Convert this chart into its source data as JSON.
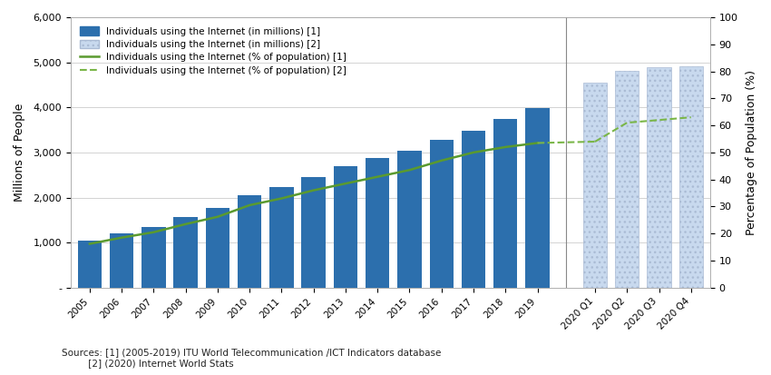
{
  "years": [
    "2005",
    "2006",
    "2007",
    "2008",
    "2009",
    "2010",
    "2011",
    "2012",
    "2013",
    "2014",
    "2015",
    "2016",
    "2017",
    "2018",
    "2019"
  ],
  "bar_values": [
    1050,
    1200,
    1350,
    1570,
    1760,
    2050,
    2230,
    2450,
    2700,
    2870,
    3030,
    3270,
    3490,
    3750,
    3990
  ],
  "pct_values": [
    16.2,
    18.5,
    20.5,
    23.5,
    26.2,
    30.5,
    33.0,
    36.0,
    38.5,
    41.0,
    43.5,
    47.0,
    50.0,
    52.0,
    53.5
  ],
  "quarters": [
    "2020 Q1",
    "2020 Q2",
    "2020 Q3",
    "2020 Q4"
  ],
  "quarter_bar_values": [
    4540,
    4810,
    4900,
    4920
  ],
  "quarter_pct_values": [
    54.0,
    61.0,
    62.0,
    63.0
  ],
  "bar_color_solid": "#2c6fad",
  "bar_color_hatched": "#c8d9ee",
  "line_color_solid": "#5a9a2f",
  "line_color_dashed": "#7ab648",
  "ylabel_left": "Millions of People",
  "ylabel_right": "Percentage of Population (%)",
  "ylim_left": [
    0,
    6000
  ],
  "ylim_right": [
    0,
    100
  ],
  "yticks_left": [
    0,
    1000,
    2000,
    3000,
    4000,
    5000,
    6000
  ],
  "yticks_left_labels": [
    "-",
    "1,000",
    "2,000",
    "3,000",
    "4,000",
    "5,000",
    "6,000"
  ],
  "yticks_right": [
    0,
    10,
    20,
    30,
    40,
    50,
    60,
    70,
    80,
    90,
    100
  ],
  "legend_labels": [
    "Individuals using the Internet (in millions) [1]",
    "Individuals using the Internet (in millions) [2]",
    "Individuals using the Internet (% of population) [1]",
    "Individuals using the Internet (% of population) [2]"
  ],
  "source_text": "Sources: [1] (2005-2019) ITU World Telecommunication /ICT Indicators database\n         [2] (2020) Internet World Stats",
  "bg_color": "#ffffff",
  "grid_color": "#cccccc"
}
